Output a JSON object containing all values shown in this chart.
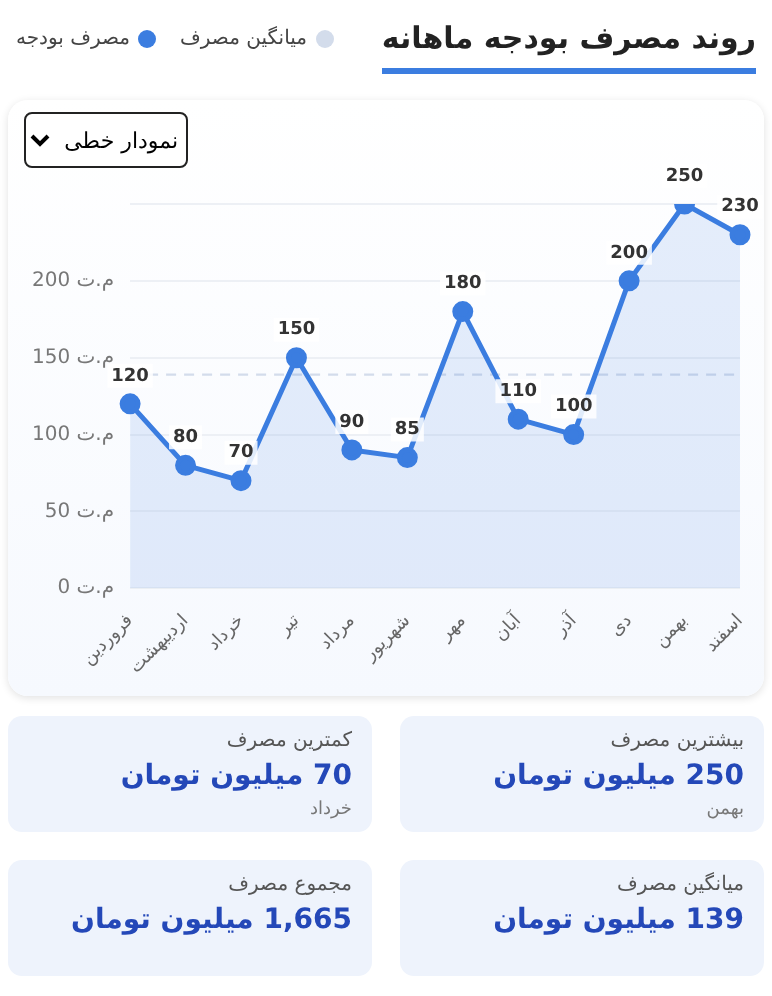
{
  "chart_data": [
    {
      "type": "area",
      "title": "روند مصرف بودجه ماهانه",
      "categories": [
        "فروردین",
        "اردیبهشت",
        "خرداد",
        "تیر",
        "مرداد",
        "شهریور",
        "مهر",
        "آبان",
        "آذر",
        "دی",
        "بهمن",
        "اسفند"
      ],
      "series": [
        {
          "name": "مصرف بودجه",
          "color": "#3b7de0",
          "values": [
            120,
            80,
            70,
            150,
            90,
            85,
            180,
            110,
            100,
            200,
            250,
            230
          ]
        }
      ],
      "ylim": [
        0,
        250
      ],
      "yticks": [
        {
          "value": 0,
          "label": "0 م.ت"
        },
        {
          "value": 50,
          "label": "50 م.ت"
        },
        {
          "value": 100,
          "label": "100 م.ت"
        },
        {
          "value": 150,
          "label": "150 م.ت"
        },
        {
          "value": 200,
          "label": "200 م.ت"
        },
        {
          "value": 250,
          "label": null
        }
      ],
      "grid": "y",
      "legend": "top left",
      "marker": "circle",
      "data_labels": true,
      "ref_lines": [
        {
          "axis": "y",
          "value": 139,
          "label": "میانگین مصرف",
          "color": "#d3dceb",
          "line_style": "dashed"
        }
      ],
      "annotations": [
        "نمودار خطی"
      ]
    },
    {
      "type": "other",
      "annotations": [
        "بیشترین مصرف\n250 میلیون تومان\nبهمن",
        "کمترین مصرف\n70 میلیون تومان\nخرداد",
        "میانگین مصرف\n139 میلیون تومان",
        "مجموع مصرف\n1,665 میلیون تومان"
      ]
    }
  ]
}
